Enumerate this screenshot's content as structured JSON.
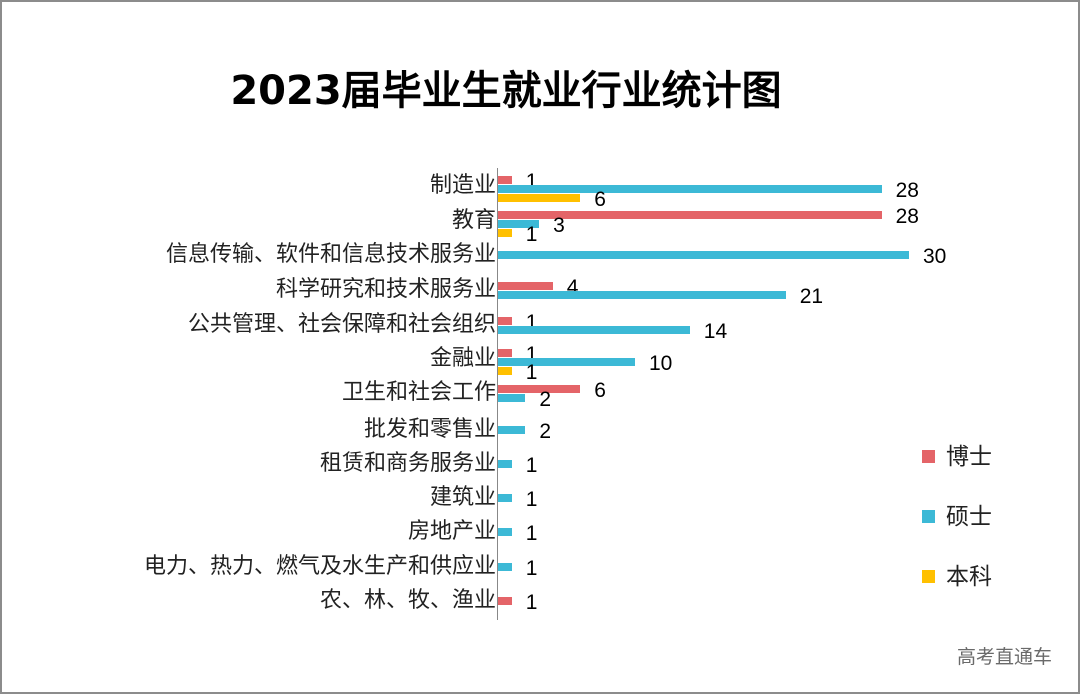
{
  "chart_data": {
    "type": "bar",
    "orientation": "horizontal",
    "title": "2023届毕业生就业行业统计图",
    "xlabel": "",
    "ylabel": "",
    "xlim": [
      0,
      30
    ],
    "grid": false,
    "legend_position": "right",
    "categories": [
      "制造业",
      "教育",
      "信息传输、软件和信息技术服务业",
      "科学研究和技术服务业",
      "公共管理、社会保障和社会组织",
      "金融业",
      "卫生和社会工作",
      "批发和零售业",
      "租赁和商务服务业",
      "建筑业",
      "房地产业",
      "电力、热力、燃气及水生产和供应业",
      "农、林、牧、渔业"
    ],
    "series": [
      {
        "name": "博士",
        "color": "#e46468",
        "values": [
          1,
          28,
          0,
          4,
          1,
          1,
          6,
          0,
          0,
          0,
          0,
          0,
          1
        ]
      },
      {
        "name": "硕士",
        "color": "#3cb9d6",
        "values": [
          28,
          3,
          30,
          21,
          14,
          10,
          2,
          2,
          1,
          1,
          1,
          1,
          0
        ]
      },
      {
        "name": "本科",
        "color": "#ffc000",
        "values": [
          6,
          1,
          0,
          0,
          0,
          1,
          0,
          0,
          0,
          0,
          0,
          0,
          0
        ]
      }
    ]
  },
  "watermark": "高考直通车"
}
